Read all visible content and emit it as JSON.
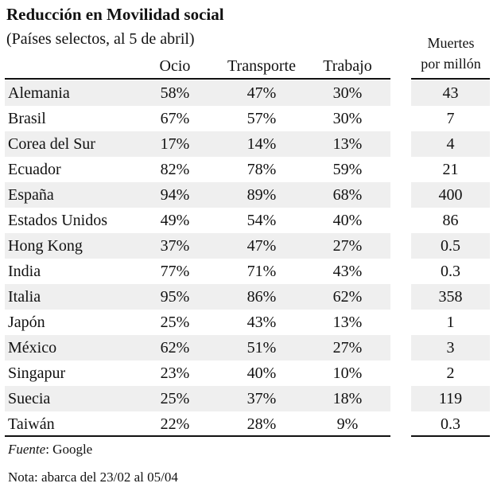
{
  "title": "Reducción en Movilidad social",
  "subtitle": "(Países selectos, al 5 de abril)",
  "columns": {
    "ocio": "Ocio",
    "transporte": "Transporte",
    "trabajo": "Trabajo",
    "deaths_line1": "Muertes",
    "deaths_line2": "por millón"
  },
  "rows": [
    {
      "country": "Alemania",
      "ocio": "58%",
      "transporte": "47%",
      "trabajo": "30%",
      "deaths": "43"
    },
    {
      "country": "Brasil",
      "ocio": "67%",
      "transporte": "57%",
      "trabajo": "30%",
      "deaths": "7"
    },
    {
      "country": "Corea del Sur",
      "ocio": "17%",
      "transporte": "14%",
      "trabajo": "13%",
      "deaths": "4"
    },
    {
      "country": "Ecuador",
      "ocio": "82%",
      "transporte": "78%",
      "trabajo": "59%",
      "deaths": "21"
    },
    {
      "country": "España",
      "ocio": "94%",
      "transporte": "89%",
      "trabajo": "68%",
      "deaths": "400"
    },
    {
      "country": "Estados Unidos",
      "ocio": "49%",
      "transporte": "54%",
      "trabajo": "40%",
      "deaths": "86"
    },
    {
      "country": "Hong Kong",
      "ocio": "37%",
      "transporte": "47%",
      "trabajo": "27%",
      "deaths": "0.5"
    },
    {
      "country": "India",
      "ocio": "77%",
      "transporte": "71%",
      "trabajo": "43%",
      "deaths": "0.3"
    },
    {
      "country": "Italia",
      "ocio": "95%",
      "transporte": "86%",
      "trabajo": "62%",
      "deaths": "358"
    },
    {
      "country": "Japón",
      "ocio": "25%",
      "transporte": "43%",
      "trabajo": "13%",
      "deaths": "1"
    },
    {
      "country": "México",
      "ocio": "62%",
      "transporte": "51%",
      "trabajo": "27%",
      "deaths": "3"
    },
    {
      "country": "Singapur",
      "ocio": "23%",
      "transporte": "40%",
      "trabajo": "10%",
      "deaths": "2"
    },
    {
      "country": "Suecia",
      "ocio": "25%",
      "transporte": "37%",
      "trabajo": "18%",
      "deaths": "119"
    },
    {
      "country": "Taiwán",
      "ocio": "22%",
      "transporte": "28%",
      "trabajo": "9%",
      "deaths": "0.3"
    }
  ],
  "footnotes": {
    "source_label": "Fuente",
    "source_text": ": Google",
    "note": "Nota: abarca del 23/02 al 05/04"
  }
}
